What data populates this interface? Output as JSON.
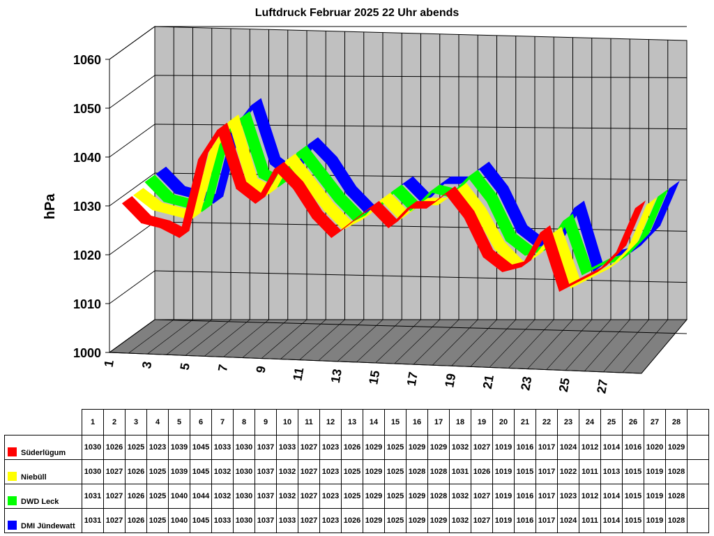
{
  "chart_data": {
    "type": "area",
    "title": "Luftdruck Februar 2025 22 Uhr abends",
    "ylabel": "hPa",
    "xlabel": "",
    "ylim": [
      1000,
      1060
    ],
    "yticks": [
      "1060",
      "1050",
      "1040",
      "1030",
      "1020",
      "1010",
      "1000"
    ],
    "x_tick_labels": [
      "1",
      "3",
      "5",
      "7",
      "9",
      "11",
      "13",
      "15",
      "17",
      "19",
      "21",
      "23",
      "25",
      "27"
    ],
    "categories": [
      "1",
      "2",
      "3",
      "4",
      "5",
      "6",
      "7",
      "8",
      "9",
      "10",
      "11",
      "12",
      "13",
      "14",
      "15",
      "16",
      "17",
      "18",
      "19",
      "20",
      "21",
      "22",
      "23",
      "24",
      "25",
      "26",
      "27",
      "28"
    ],
    "series": [
      {
        "name": "Süderlügum",
        "color": "#ff0000",
        "values": [
          1030,
          1026,
          1025,
          1023,
          1039,
          1045,
          1033,
          1030,
          1037,
          1033,
          1027,
          1023,
          1026,
          1029,
          1025,
          1029,
          1029,
          1032,
          1027,
          1019,
          1016,
          1017,
          1024,
          1012,
          1014,
          1016,
          1020,
          1029
        ]
      },
      {
        "name": "Niebüll",
        "color": "#ffff00",
        "values": [
          1030,
          1027,
          1026,
          1025,
          1039,
          1045,
          1032,
          1030,
          1037,
          1032,
          1027,
          1023,
          1025,
          1029,
          1025,
          1028,
          1028,
          1031,
          1026,
          1019,
          1015,
          1017,
          1022,
          1011,
          1013,
          1015,
          1019,
          1028
        ]
      },
      {
        "name": "DWD Leck",
        "color": "#00ff00",
        "values": [
          1031,
          1027,
          1026,
          1025,
          1040,
          1044,
          1032,
          1030,
          1037,
          1032,
          1027,
          1023,
          1025,
          1029,
          1025,
          1029,
          1028,
          1032,
          1027,
          1019,
          1016,
          1017,
          1023,
          1012,
          1014,
          1015,
          1019,
          1028
        ]
      },
      {
        "name": "DMI Jündewatt",
        "color": "#0000ff",
        "values": [
          1031,
          1027,
          1026,
          1025,
          1040,
          1045,
          1033,
          1030,
          1037,
          1033,
          1027,
          1023,
          1026,
          1029,
          1025,
          1029,
          1029,
          1032,
          1027,
          1019,
          1016,
          1017,
          1024,
          1011,
          1014,
          1015,
          1019,
          1028
        ]
      }
    ],
    "grid": true,
    "legend": "table-below"
  }
}
